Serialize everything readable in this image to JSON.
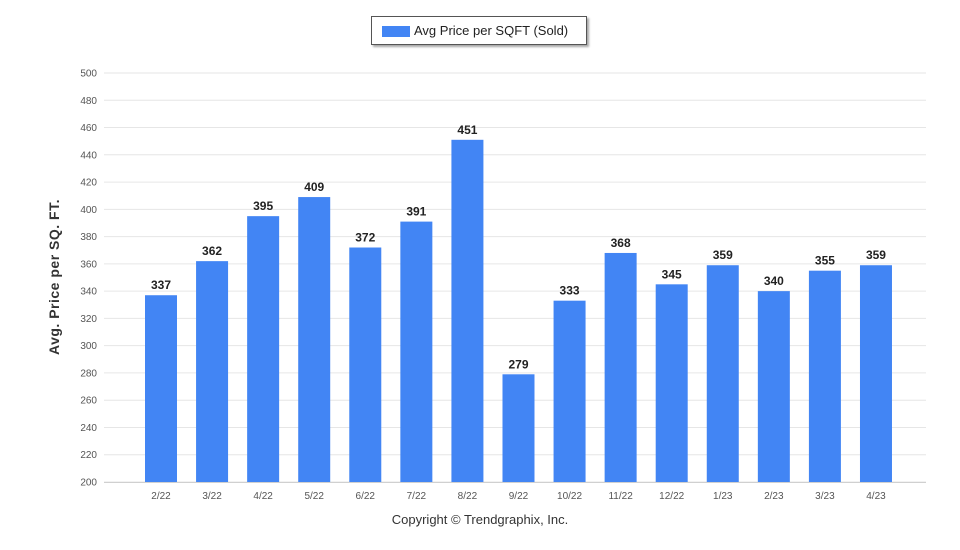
{
  "legend": {
    "label": "Avg Price per SQFT (Sold)"
  },
  "footer": {
    "copyright": "Copyright © Trendgraphix, Inc."
  },
  "colors": {
    "bar": "#4285f4",
    "grid": "#e6e6e6",
    "axis_text": "#555555",
    "label_text": "#222222"
  },
  "chart_data": {
    "type": "bar",
    "categories": [
      "2/22",
      "3/22",
      "4/22",
      "5/22",
      "6/22",
      "7/22",
      "8/22",
      "9/22",
      "10/22",
      "11/22",
      "12/22",
      "1/23",
      "2/23",
      "3/23",
      "4/23"
    ],
    "series": [
      {
        "name": "Avg Price per SQFT (Sold)",
        "values": [
          337,
          362,
          395,
          409,
          372,
          391,
          451,
          279,
          333,
          368,
          345,
          359,
          340,
          355,
          359
        ]
      }
    ],
    "ylabel": "Avg. Price per SQ. FT.",
    "xlabel": "",
    "ylim": [
      200,
      500
    ],
    "yticks": [
      200,
      220,
      240,
      260,
      280,
      300,
      320,
      340,
      360,
      380,
      400,
      420,
      440,
      460,
      480,
      500
    ],
    "grid": true,
    "legend_position": "top-center",
    "data_labels": true
  }
}
